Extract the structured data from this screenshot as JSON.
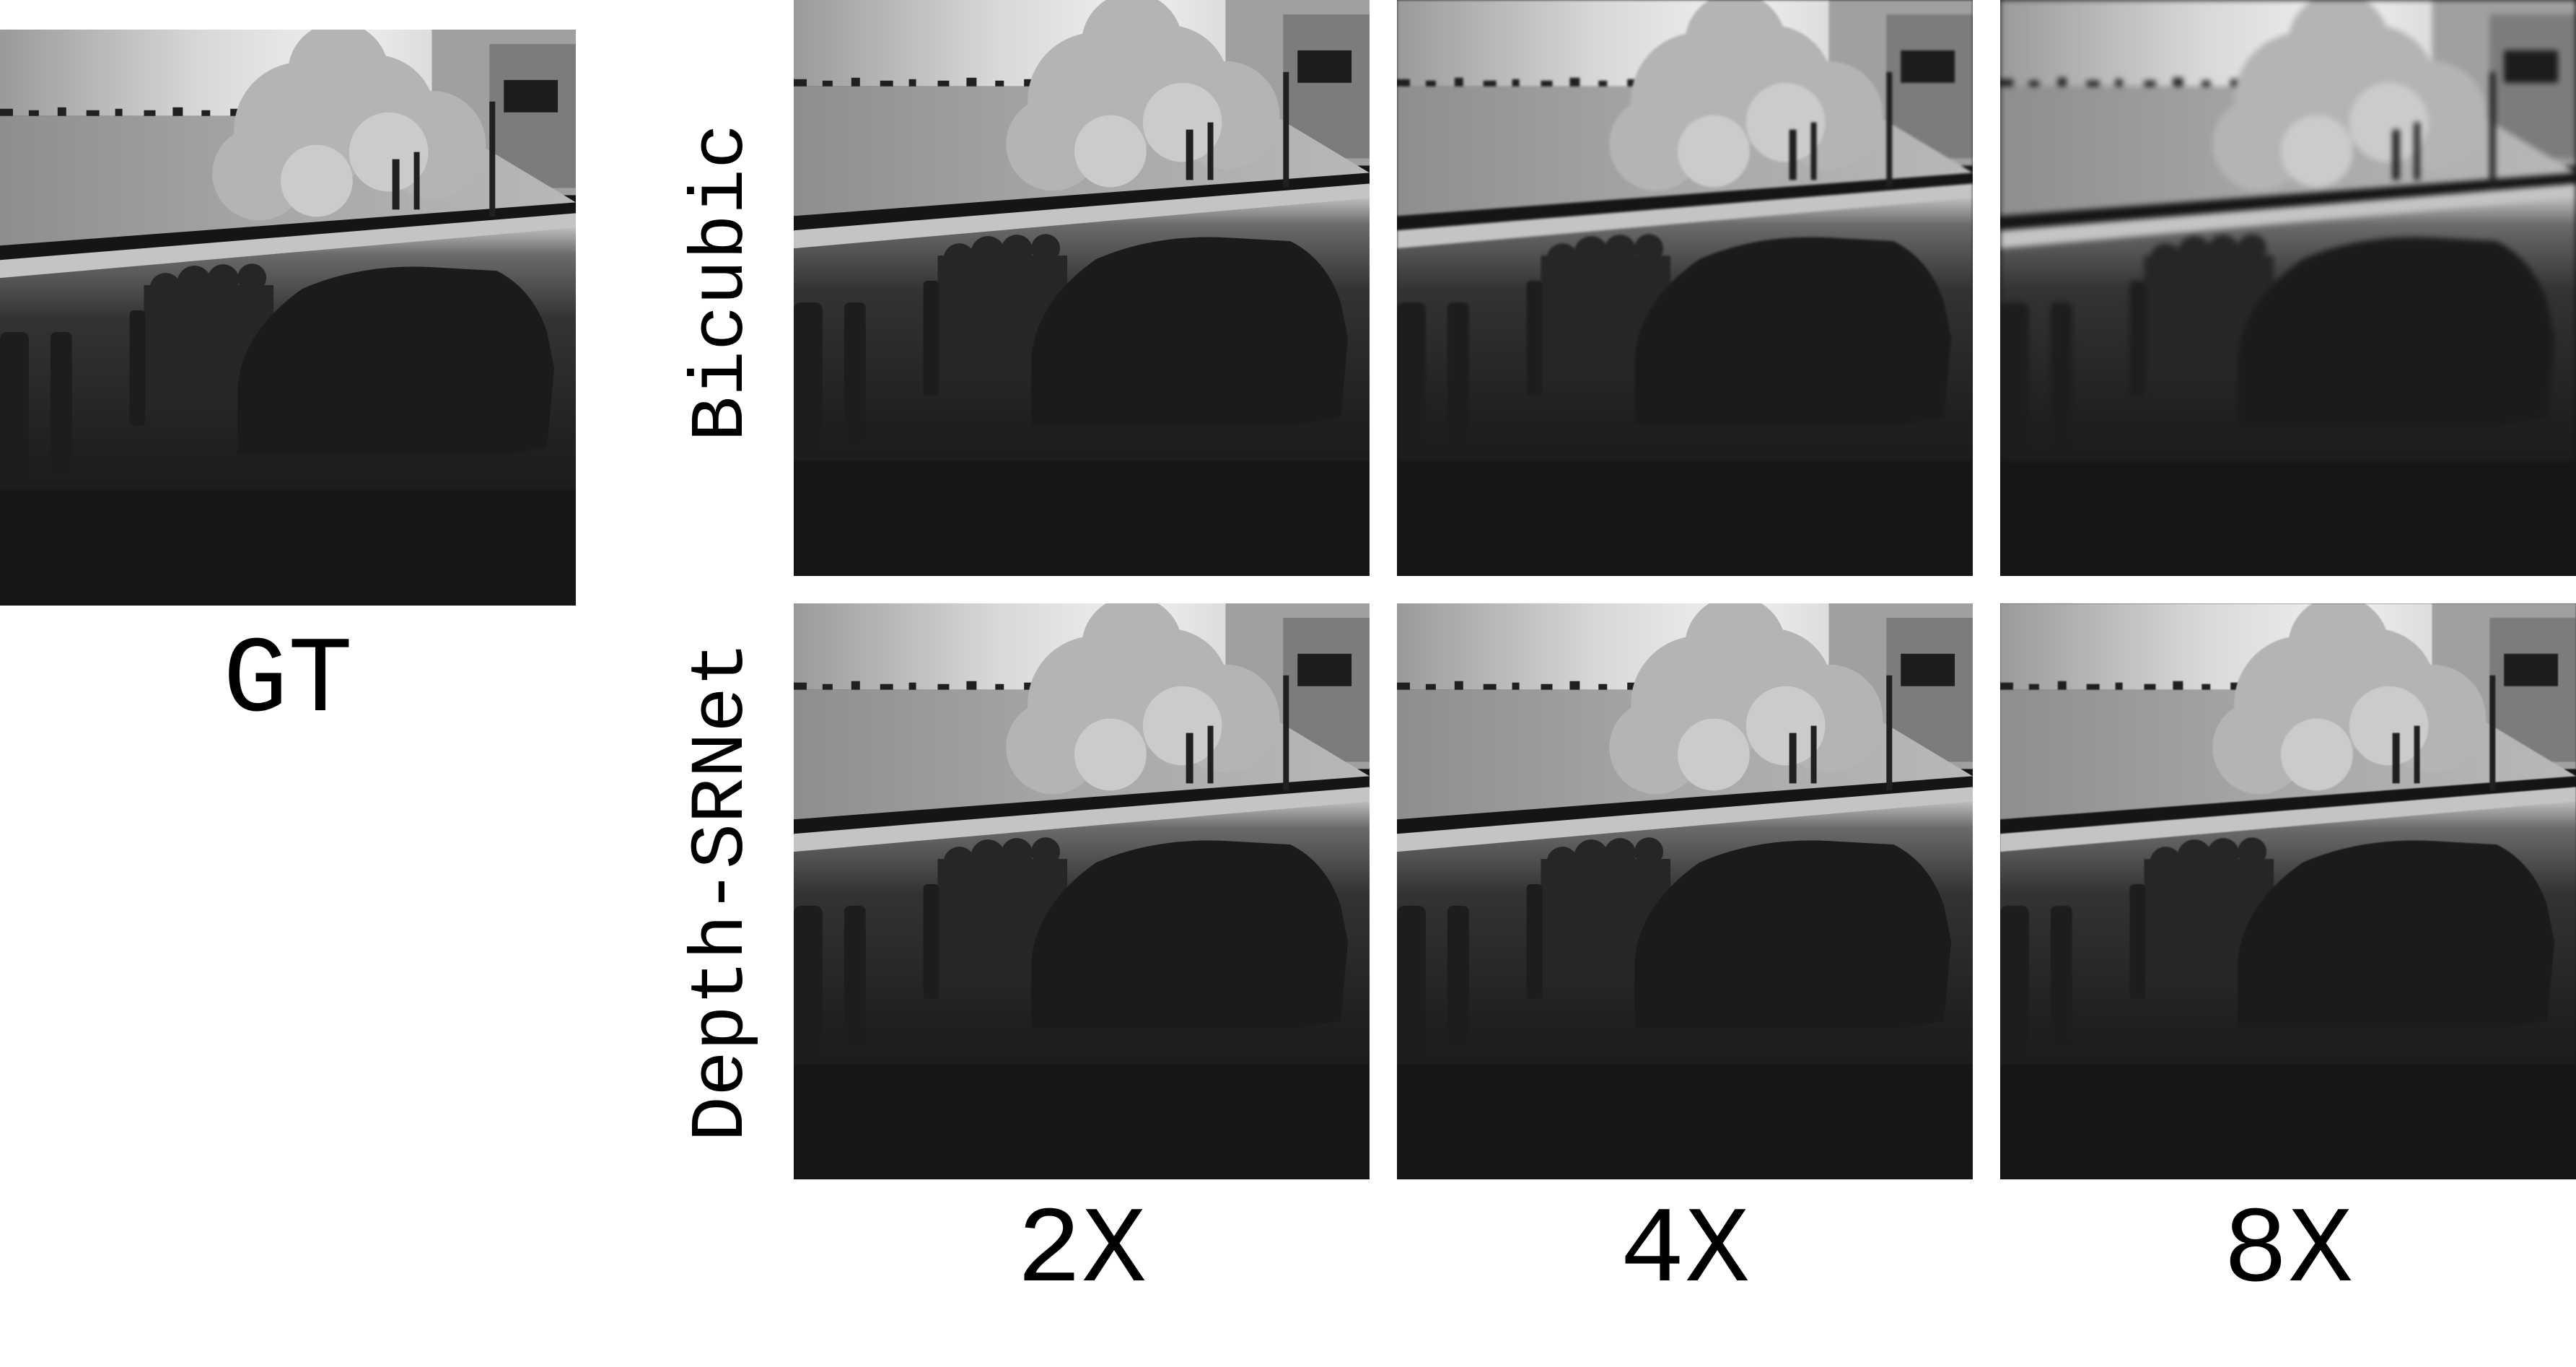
{
  "gt_label": "GT",
  "rows": [
    {
      "label": "Bicubic"
    },
    {
      "label": "Depth-SRNet"
    }
  ],
  "columns": [
    {
      "label": "2X"
    },
    {
      "label": "4X"
    },
    {
      "label": "8X"
    }
  ],
  "colors": {
    "background": "#ffffff",
    "depth_near": "#151515",
    "depth_far": "#f2f2f2"
  }
}
